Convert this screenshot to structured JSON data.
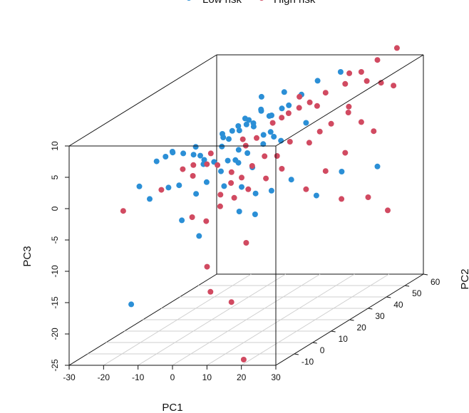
{
  "chart_data": {
    "type": "scatter",
    "legend": {
      "placement": "top",
      "entries": [
        {
          "label": "Low risk",
          "color": "#2b8fd6"
        },
        {
          "label": "High risk",
          "color": "#d14a61"
        }
      ]
    },
    "axes": {
      "x": {
        "label": "PC1",
        "range": [
          -30,
          30
        ],
        "ticks": [
          "-30",
          "-20",
          "-10",
          "0",
          "10",
          "20",
          "30"
        ]
      },
      "y": {
        "label": "PC2",
        "range": [
          -20,
          60
        ],
        "ticks": [
          "-10",
          "0",
          "10",
          "20",
          "30",
          "40",
          "50",
          "60"
        ]
      },
      "z": {
        "label": "PC3",
        "range": [
          -25,
          10
        ],
        "ticks": [
          "-25",
          "-20",
          "-15",
          "-10",
          "-5",
          "0",
          "5",
          "10"
        ]
      }
    },
    "grid": "floor",
    "series": [
      {
        "name": "Low risk",
        "color": "#2b8fd6",
        "points": [
          [
            -23,
            5,
            -1
          ],
          [
            -18,
            5,
            3
          ],
          [
            -17,
            8,
            3.2
          ],
          [
            -16,
            10,
            3.5
          ],
          [
            -15,
            8,
            4
          ],
          [
            -14,
            12,
            3
          ],
          [
            -12,
            15,
            3.5
          ],
          [
            -11,
            12,
            2.8
          ],
          [
            -14,
            4,
            -1
          ],
          [
            -12,
            6,
            -1
          ],
          [
            -20,
            5,
            -3
          ],
          [
            -8,
            10,
            3
          ],
          [
            -6,
            8,
            2
          ],
          [
            -4,
            15,
            5
          ],
          [
            -3,
            18,
            5.5
          ],
          [
            -2,
            20,
            5.2
          ],
          [
            -1,
            22,
            5.8
          ],
          [
            0,
            24,
            5.1
          ],
          [
            1,
            22,
            6
          ],
          [
            -5,
            25,
            5
          ],
          [
            -3,
            27,
            5.6
          ],
          [
            -1,
            30,
            6.5
          ],
          [
            2,
            30,
            5.8
          ],
          [
            4,
            25,
            6.6
          ],
          [
            5,
            30,
            6.9
          ],
          [
            7,
            30,
            7.4
          ],
          [
            8,
            35,
            8.2
          ],
          [
            10,
            40,
            9.5
          ],
          [
            5,
            20,
            4.5
          ],
          [
            2,
            12,
            1.5
          ],
          [
            -2,
            10,
            0.5
          ],
          [
            -4,
            10,
            2
          ],
          [
            0,
            10,
            2.2
          ],
          [
            3,
            15,
            2.5
          ],
          [
            6,
            18,
            3.4
          ],
          [
            8,
            20,
            4.2
          ],
          [
            -6,
            4,
            -2
          ],
          [
            -4,
            6,
            -0.5
          ],
          [
            0,
            8,
            -1.5
          ],
          [
            4,
            10,
            -2
          ],
          [
            7,
            12,
            -3.4
          ],
          [
            10,
            15,
            -3.5
          ],
          [
            12,
            22,
            -3
          ],
          [
            6,
            5,
            -5
          ],
          [
            9,
            8,
            -6
          ],
          [
            -8,
            0,
            -5.5
          ],
          [
            -3,
            0,
            -8
          ],
          [
            15,
            30,
            -7
          ],
          [
            17,
            40,
            -5
          ],
          [
            22,
            50,
            -6
          ],
          [
            -20,
            -5,
            -18
          ],
          [
            -3,
            25,
            6.2
          ],
          [
            0,
            28,
            7.1
          ],
          [
            -2,
            32,
            8.4
          ],
          [
            3,
            35,
            8.6
          ],
          [
            -6,
            18,
            3
          ],
          [
            -9,
            14,
            1.6
          ],
          [
            1,
            14,
            3.2
          ],
          [
            -4,
            18,
            4.2
          ],
          [
            6,
            22,
            4.6
          ],
          [
            -1,
            16,
            1.2
          ],
          [
            5,
            14,
            0.4
          ],
          [
            9,
            22,
            3.2
          ],
          [
            12,
            30,
            4.6
          ],
          [
            -8,
            22,
            4.3
          ],
          [
            14,
            45,
            10
          ]
        ]
      },
      {
        "name": "High risk",
        "color": "#d14a61",
        "points": [
          [
            -25,
            0,
            -4
          ],
          [
            -15,
            2,
            -1
          ],
          [
            -10,
            10,
            1.5
          ],
          [
            -8,
            6,
            0.5
          ],
          [
            -5,
            8,
            2
          ],
          [
            -3,
            10,
            1.5
          ],
          [
            0,
            12,
            0
          ],
          [
            2,
            8,
            -1
          ],
          [
            4,
            10,
            -0.5
          ],
          [
            6,
            12,
            1
          ],
          [
            8,
            15,
            2
          ],
          [
            10,
            18,
            1.5
          ],
          [
            3,
            20,
            4
          ],
          [
            5,
            25,
            5.5
          ],
          [
            8,
            28,
            6.5
          ],
          [
            10,
            30,
            7
          ],
          [
            12,
            32,
            7.5
          ],
          [
            15,
            35,
            8.5
          ],
          [
            18,
            40,
            9
          ],
          [
            20,
            45,
            10
          ],
          [
            22,
            50,
            11
          ],
          [
            25,
            55,
            12
          ],
          [
            20,
            48,
            8
          ],
          [
            22,
            52,
            7
          ],
          [
            24,
            55,
            6
          ],
          [
            18,
            42,
            5
          ],
          [
            15,
            38,
            3
          ],
          [
            20,
            45,
            2
          ],
          [
            22,
            48,
            0
          ],
          [
            18,
            40,
            -2
          ],
          [
            15,
            35,
            -4
          ],
          [
            12,
            30,
            -6
          ],
          [
            18,
            38,
            -9
          ],
          [
            22,
            45,
            -10
          ],
          [
            25,
            50,
            -13
          ],
          [
            -5,
            0,
            -5
          ],
          [
            -2,
            2,
            -6
          ],
          [
            1,
            4,
            -4
          ],
          [
            4,
            6,
            -3
          ],
          [
            7,
            8,
            -2
          ],
          [
            10,
            12,
            -1
          ],
          [
            13,
            15,
            0
          ],
          [
            8,
            5,
            -10
          ],
          [
            2,
            -5,
            -12
          ],
          [
            3,
            -5,
            -16
          ],
          [
            8,
            -3,
            -18
          ],
          [
            18,
            -15,
            -25
          ],
          [
            -6,
            12,
            3
          ],
          [
            -1,
            20,
            3.8
          ],
          [
            6,
            28,
            5.8
          ],
          [
            12,
            36,
            6.2
          ],
          [
            16,
            30,
            3.2
          ],
          [
            0,
            6,
            -2.5
          ],
          [
            10,
            25,
            2.5
          ],
          [
            14,
            28,
            1.8
          ],
          [
            -12,
            8,
            1.2
          ],
          [
            2,
            16,
            3.5
          ],
          [
            9,
            32,
            8.4
          ],
          [
            16,
            46,
            9.6
          ],
          [
            20,
            38,
            4.8
          ]
        ]
      }
    ]
  }
}
